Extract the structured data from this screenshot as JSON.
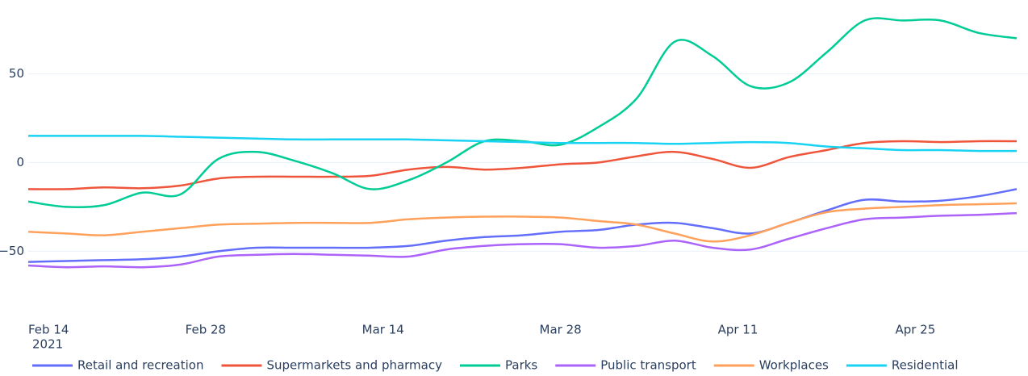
{
  "chart_data": {
    "type": "line",
    "x": [
      "2021-02-14",
      "2021-02-17",
      "2021-02-20",
      "2021-02-23",
      "2021-02-26",
      "2021-03-01",
      "2021-03-04",
      "2021-03-07",
      "2021-03-10",
      "2021-03-13",
      "2021-03-16",
      "2021-03-19",
      "2021-03-22",
      "2021-03-25",
      "2021-03-28",
      "2021-03-31",
      "2021-04-03",
      "2021-04-06",
      "2021-04-09",
      "2021-04-12",
      "2021-04-15",
      "2021-04-18",
      "2021-04-21",
      "2021-04-24",
      "2021-04-27",
      "2021-04-30",
      "2021-05-03"
    ],
    "series": [
      {
        "name": "Retail and recreation",
        "color": "#636efa",
        "values": [
          -56,
          -55.5,
          -55,
          -54.5,
          -53,
          -50,
          -48,
          -48,
          -48,
          -48,
          -47,
          -44,
          -42,
          -41,
          -39,
          -38,
          -35,
          -34,
          -37,
          -40,
          -34,
          -27,
          -21,
          -22,
          -21.5,
          -19,
          -15
        ]
      },
      {
        "name": "Supermarkets and pharmacy",
        "color": "#EF553B",
        "values": [
          -15,
          -15,
          -14,
          -14.5,
          -13,
          -9,
          -8,
          -8,
          -8,
          -7.5,
          -4,
          -2.5,
          -4,
          -3,
          -1,
          0,
          3.5,
          6,
          2,
          -3,
          3,
          7,
          11,
          12,
          11.5,
          12,
          12
        ]
      },
      {
        "name": "Parks",
        "color": "#00cc96",
        "values": [
          -22,
          -25,
          -24,
          -17,
          -18,
          2,
          6,
          1,
          -6,
          -15,
          -10,
          0,
          12,
          12,
          10,
          20,
          36,
          68,
          60,
          43,
          45,
          62,
          80,
          80,
          80,
          73,
          70
        ]
      },
      {
        "name": "Public transport",
        "color": "#ab63fa",
        "values": [
          -58,
          -59,
          -58.5,
          -59,
          -57.5,
          -53,
          -52,
          -51.5,
          -52,
          -52.5,
          -53,
          -49,
          -47,
          -46,
          -46,
          -48,
          -47,
          -44,
          -48,
          -49,
          -43,
          -37,
          -32,
          -31,
          -30,
          -29.5,
          -28.5
        ]
      },
      {
        "name": "Workplaces",
        "color": "#FFA15A",
        "values": [
          -39,
          -40,
          -41,
          -39,
          -37,
          -35,
          -34.5,
          -34,
          -34,
          -34,
          -32,
          -31,
          -30.5,
          -30.5,
          -31,
          -33,
          -35,
          -40,
          -44.5,
          -41,
          -34,
          -28,
          -26,
          -25,
          -24,
          -23.5,
          -23
        ]
      },
      {
        "name": "Residential",
        "color": "#19d3f3",
        "values": [
          15,
          15,
          15,
          15,
          14.5,
          14,
          13.5,
          13,
          13,
          13,
          13,
          12.5,
          12,
          11.5,
          11,
          11,
          11,
          10.5,
          11,
          11.5,
          11,
          9,
          8,
          7,
          7,
          6.5,
          6.5
        ]
      }
    ],
    "xlim": [
      "2021-02-14",
      "2021-05-03"
    ],
    "xticks": [
      {
        "value": "2021-02-14",
        "label": "Feb 14"
      },
      {
        "value": "2021-02-28",
        "label": "Feb 28"
      },
      {
        "value": "2021-03-14",
        "label": "Mar 14"
      },
      {
        "value": "2021-03-28",
        "label": "Mar 28"
      },
      {
        "value": "2021-04-11",
        "label": "Apr 11"
      },
      {
        "value": "2021-04-25",
        "label": "Apr 25"
      }
    ],
    "x_year_label": "2021",
    "ylim": [
      -88,
      87
    ],
    "yticks": [
      {
        "value": -50,
        "label": "−50"
      },
      0,
      50
    ],
    "grid": true,
    "legend": "bottom"
  }
}
